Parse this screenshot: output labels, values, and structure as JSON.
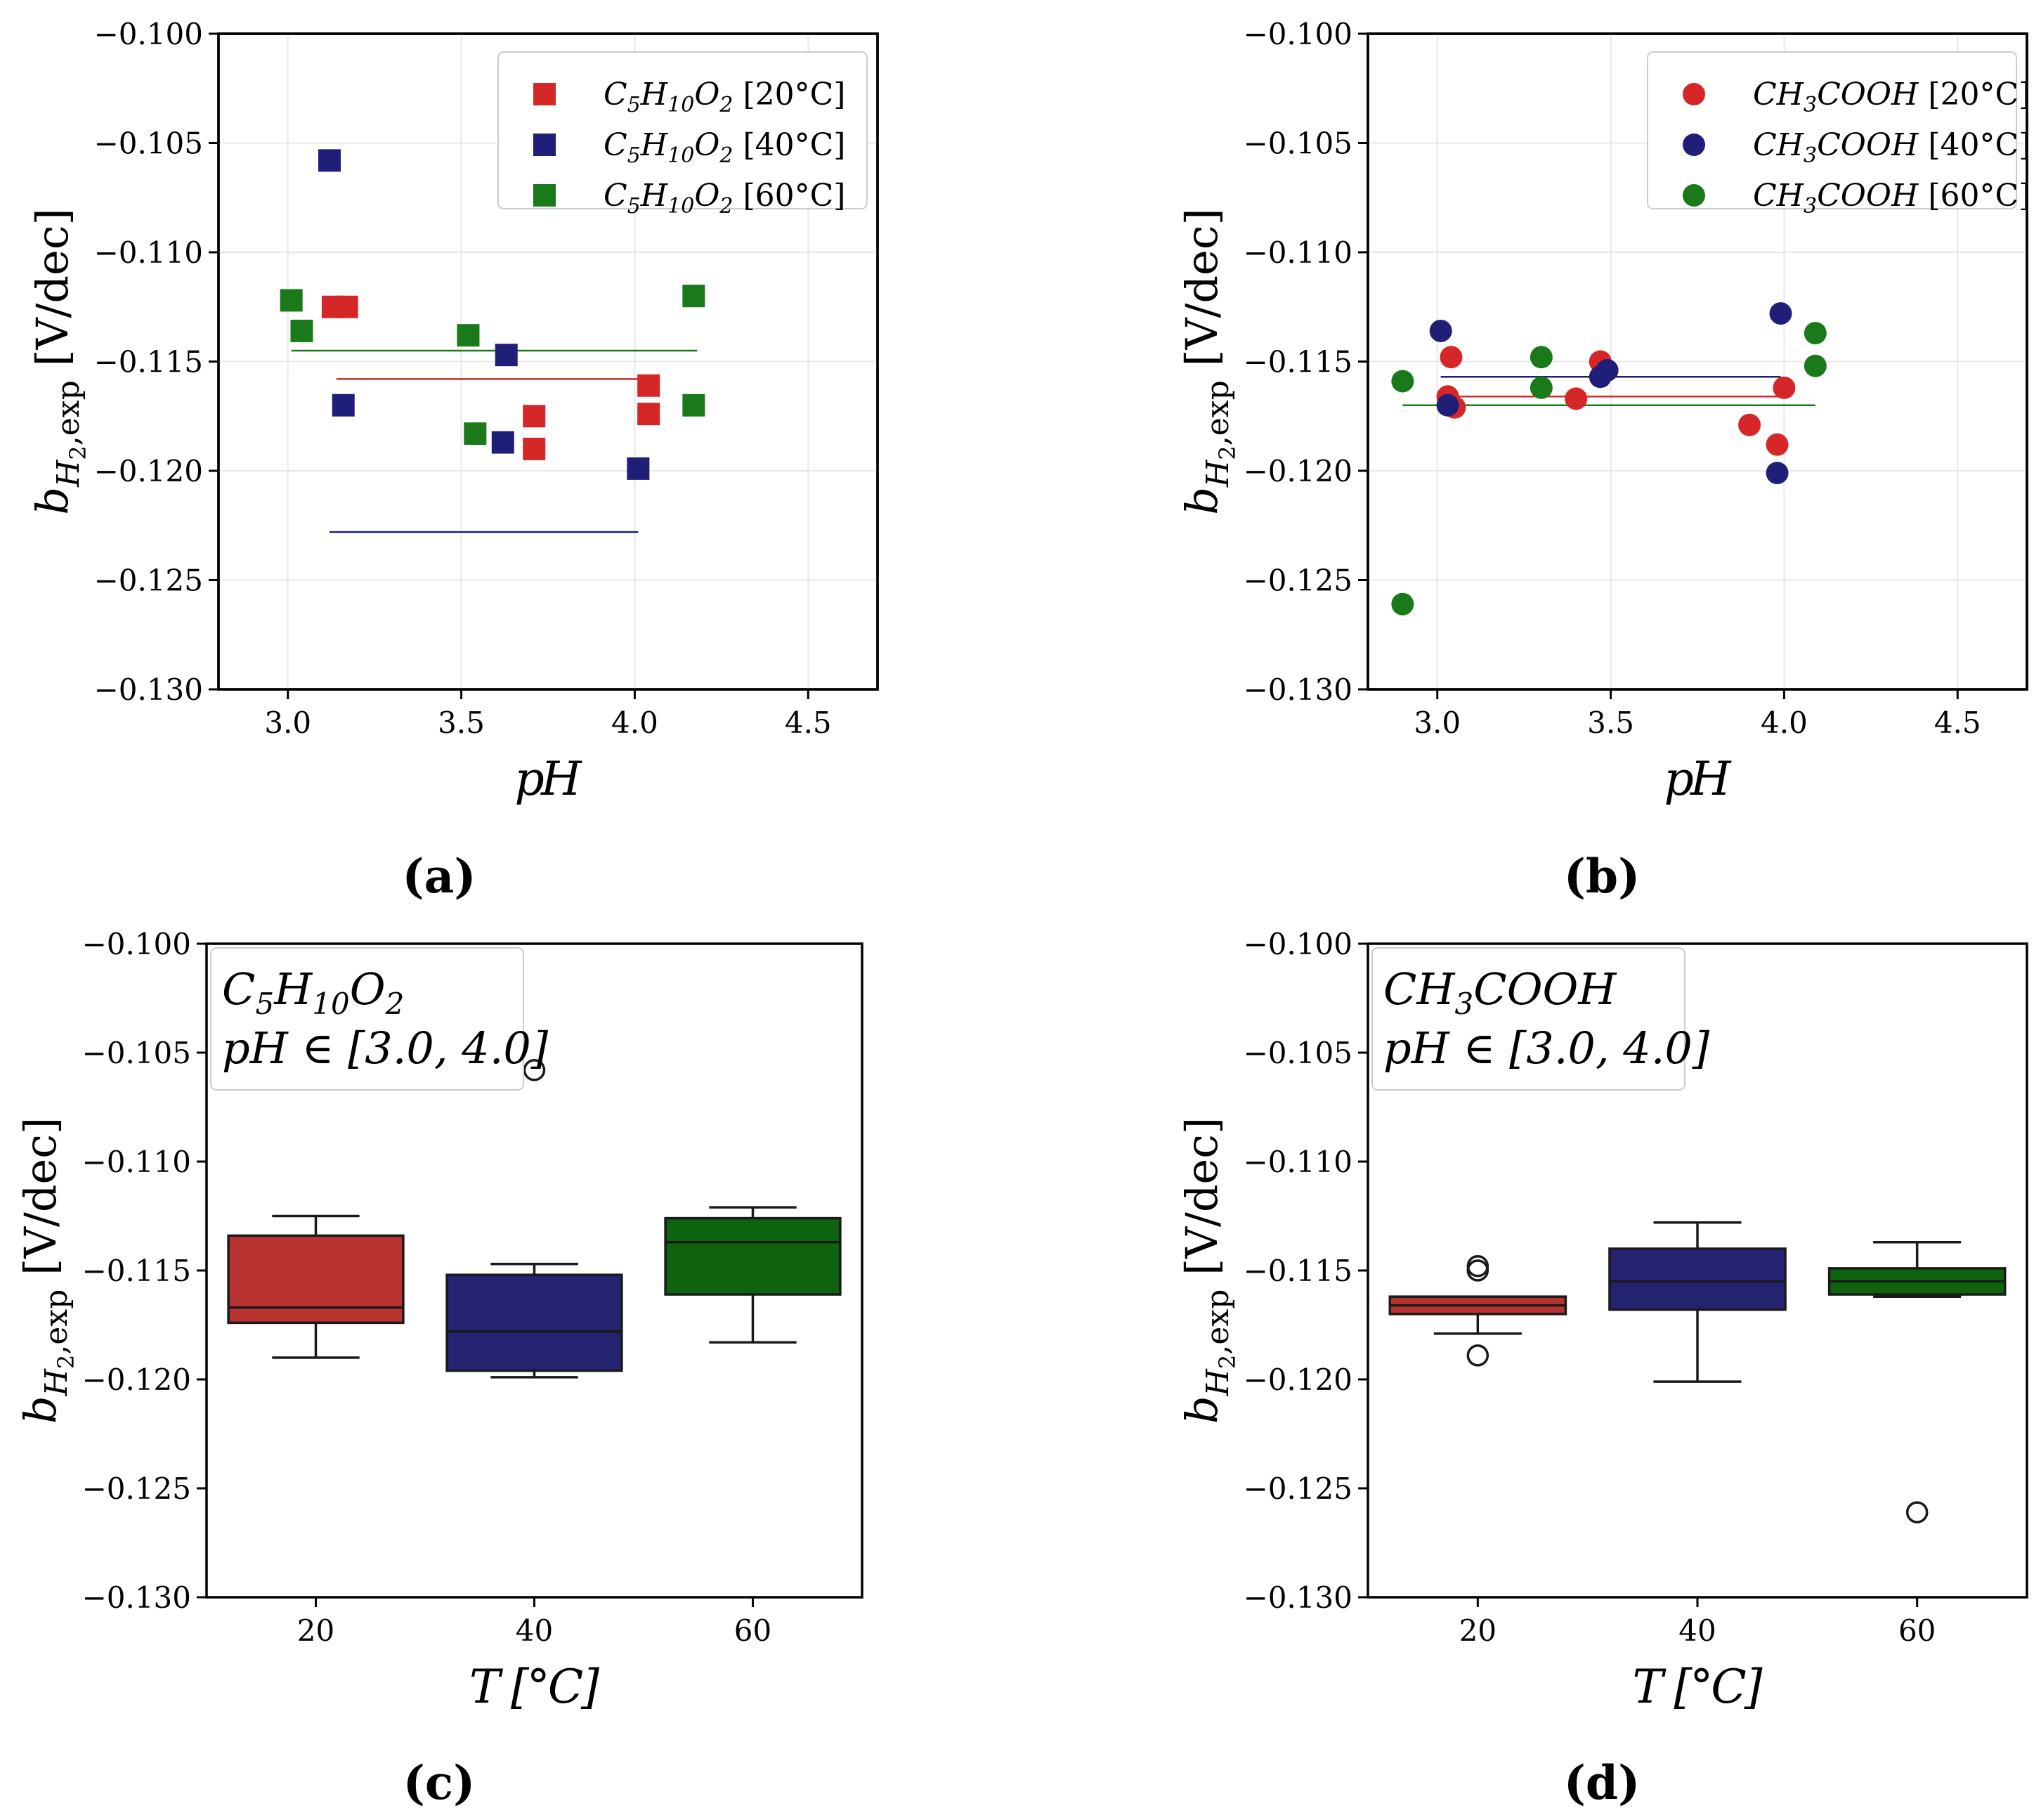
{
  "colors": {
    "red": "#d62728",
    "blue": "#1f1f7a",
    "green": "#1a7a1a",
    "box_red": "#b83232",
    "box_blue": "#232372",
    "box_green": "#0f630f"
  },
  "chart_data": [
    {
      "id": "a",
      "type": "scatter",
      "subtitle": "(a)",
      "xlabel": "pH",
      "ylabel": "b_{H_2,exp} [V/dec]",
      "ylabel_main": "b",
      "ylabel_sub": "H",
      "ylabel_subsub": "2",
      "ylabel_sub2": ",exp",
      "ylabel_unit": " [V/dec]",
      "xlim": [
        2.8,
        4.7
      ],
      "ylim": [
        -0.13,
        -0.1
      ],
      "xticks": [
        3.0,
        3.5,
        4.0,
        4.5
      ],
      "xtick_labels": [
        "3.0",
        "3.5",
        "4.0",
        "4.5"
      ],
      "yticks": [
        -0.1,
        -0.105,
        -0.11,
        -0.115,
        -0.12,
        -0.125,
        -0.13
      ],
      "ytick_labels": [
        "−0.100",
        "−0.105",
        "−0.110",
        "−0.115",
        "−0.120",
        "−0.125",
        "−0.130"
      ],
      "marker": "square",
      "legend_position": "top-right",
      "series": [
        {
          "name": "C5H10O2 [20°C]",
          "name_parts": [
            "C",
            "5",
            "H",
            "10",
            "O",
            "2",
            " [20°C]"
          ],
          "color": "#d62728",
          "x": [
            3.13,
            3.17,
            3.71,
            3.71,
            4.04,
            4.04
          ],
          "y": [
            -0.1125,
            -0.1125,
            -0.1175,
            -0.119,
            -0.1161,
            -0.1174
          ],
          "fit": {
            "x": [
              3.14,
              4.04
            ],
            "y": -0.1158
          }
        },
        {
          "name": "C5H10O2 [40°C]",
          "name_parts": [
            "C",
            "5",
            "H",
            "10",
            "O",
            "2",
            " [40°C]"
          ],
          "color": "#1f1f7a",
          "x": [
            3.12,
            3.16,
            3.63,
            3.62,
            4.01
          ],
          "y": [
            -0.1058,
            -0.117,
            -0.1147,
            -0.1187,
            -0.1199
          ],
          "fit": {
            "x": [
              3.12,
              4.01
            ],
            "y": -0.1228
          }
        },
        {
          "name": "C5H10O2 [60°C]",
          "name_parts": [
            "C",
            "5",
            "H",
            "10",
            "O",
            "2",
            " [60°C]"
          ],
          "color": "#1a7a1a",
          "x": [
            3.01,
            3.04,
            3.52,
            3.54,
            4.17,
            4.17
          ],
          "y": [
            -0.1122,
            -0.1136,
            -0.1138,
            -0.1183,
            -0.112,
            -0.117
          ],
          "fit": {
            "x": [
              3.01,
              4.18
            ],
            "y": -0.1145
          }
        }
      ]
    },
    {
      "id": "b",
      "type": "scatter",
      "subtitle": "(b)",
      "xlabel": "pH",
      "ylabel": "b_{H_2,exp} [V/dec]",
      "ylabel_main": "b",
      "ylabel_sub": "H",
      "ylabel_subsub": "2",
      "ylabel_sub2": ",exp",
      "ylabel_unit": " [V/dec]",
      "xlim": [
        2.8,
        4.7
      ],
      "ylim": [
        -0.13,
        -0.1
      ],
      "xticks": [
        3.0,
        3.5,
        4.0,
        4.5
      ],
      "xtick_labels": [
        "3.0",
        "3.5",
        "4.0",
        "4.5"
      ],
      "yticks": [
        -0.1,
        -0.105,
        -0.11,
        -0.115,
        -0.12,
        -0.125,
        -0.13
      ],
      "ytick_labels": [
        "−0.100",
        "−0.105",
        "−0.110",
        "−0.115",
        "−0.120",
        "−0.125",
        "−0.130"
      ],
      "marker": "circle",
      "legend_position": "top-right",
      "series": [
        {
          "name": "CH3COOH [20°C]",
          "name_parts": [
            "CH",
            "3",
            "COOH",
            "",
            "",
            "",
            " [20°C]"
          ],
          "color": "#d62728",
          "x": [
            3.03,
            3.04,
            3.05,
            3.4,
            3.47,
            3.9,
            3.98,
            4.0
          ],
          "y": [
            -0.1166,
            -0.1148,
            -0.1171,
            -0.1167,
            -0.115,
            -0.1179,
            -0.1188,
            -0.1162
          ],
          "fit": {
            "x": [
              3.03,
              4.0
            ],
            "y": -0.1166
          }
        },
        {
          "name": "CH3COOH [40°C]",
          "name_parts": [
            "CH",
            "3",
            "COOH",
            "",
            "",
            "",
            " [40°C]"
          ],
          "color": "#1f1f7a",
          "x": [
            3.01,
            3.03,
            3.47,
            3.49,
            3.98,
            3.99
          ],
          "y": [
            -0.1136,
            -0.117,
            -0.1157,
            -0.1154,
            -0.1201,
            -0.1128
          ],
          "fit": {
            "x": [
              3.01,
              3.99
            ],
            "y": -0.1157
          }
        },
        {
          "name": "CH3COOH [60°C]",
          "name_parts": [
            "CH",
            "3",
            "COOH",
            "",
            "",
            "",
            " [60°C]"
          ],
          "color": "#1a7a1a",
          "x": [
            2.9,
            2.9,
            3.3,
            3.3,
            4.09,
            4.09
          ],
          "y": [
            -0.1159,
            -0.1261,
            -0.1148,
            -0.1162,
            -0.1137,
            -0.1152
          ],
          "fit": {
            "x": [
              2.9,
              4.09
            ],
            "y": -0.117
          }
        }
      ]
    },
    {
      "id": "c",
      "type": "box",
      "subtitle": "(c)",
      "xlabel": "T [°C]",
      "ylabel": "b_{H_2,exp} [V/dec]",
      "ylabel_main": "b",
      "ylabel_sub": "H",
      "ylabel_subsub": "2",
      "ylabel_sub2": ",exp",
      "ylabel_unit": " [V/dec]",
      "ylim": [
        -0.13,
        -0.1
      ],
      "yticks": [
        -0.1,
        -0.105,
        -0.11,
        -0.115,
        -0.12,
        -0.125,
        -0.13
      ],
      "ytick_labels": [
        "−0.100",
        "−0.105",
        "−0.110",
        "−0.115",
        "−0.120",
        "−0.125",
        "−0.130"
      ],
      "categories": [
        "20",
        "40",
        "60"
      ],
      "info_line1_parts": [
        "C",
        "5",
        "H",
        "10",
        "O",
        "2"
      ],
      "info_line2": "pH ∈ [3.0, 4.0]",
      "boxes": [
        {
          "category": "20",
          "color": "#b83232",
          "whisker_low": -0.119,
          "q1": -0.1174,
          "median": -0.1167,
          "q3": -0.1134,
          "whisker_high": -0.1125,
          "outliers": []
        },
        {
          "category": "40",
          "color": "#232372",
          "whisker_low": -0.1199,
          "q1": -0.1196,
          "median": -0.1178,
          "q3": -0.1152,
          "whisker_high": -0.1147,
          "outliers": [
            -0.1058
          ]
        },
        {
          "category": "60",
          "color": "#0f630f",
          "whisker_low": -0.1183,
          "q1": -0.1161,
          "median": -0.1137,
          "q3": -0.1126,
          "whisker_high": -0.1121,
          "outliers": []
        }
      ]
    },
    {
      "id": "d",
      "type": "box",
      "subtitle": "(d)",
      "xlabel": "T [°C]",
      "ylabel": "b_{H_2,exp} [V/dec]",
      "ylabel_main": "b",
      "ylabel_sub": "H",
      "ylabel_subsub": "2",
      "ylabel_sub2": ",exp",
      "ylabel_unit": " [V/dec]",
      "ylim": [
        -0.13,
        -0.1
      ],
      "yticks": [
        -0.1,
        -0.105,
        -0.11,
        -0.115,
        -0.12,
        -0.125,
        -0.13
      ],
      "ytick_labels": [
        "−0.100",
        "−0.105",
        "−0.110",
        "−0.115",
        "−0.120",
        "−0.125",
        "−0.130"
      ],
      "categories": [
        "20",
        "40",
        "60"
      ],
      "info_line1_parts": [
        "CH",
        "3",
        "COOH",
        "",
        "",
        ""
      ],
      "info_line2": "pH ∈ [3.0, 4.0]",
      "boxes": [
        {
          "category": "20",
          "color": "#b83232",
          "whisker_low": -0.1179,
          "q1": -0.117,
          "median": -0.1166,
          "q3": -0.1162,
          "whisker_high": -0.1162,
          "outliers": [
            -0.1148,
            -0.115,
            -0.1189
          ]
        },
        {
          "category": "40",
          "color": "#232372",
          "whisker_low": -0.1201,
          "q1": -0.1168,
          "median": -0.1155,
          "q3": -0.114,
          "whisker_high": -0.1128,
          "outliers": []
        },
        {
          "category": "60",
          "color": "#0f630f",
          "whisker_low": -0.1162,
          "q1": -0.1161,
          "median": -0.1155,
          "q3": -0.1149,
          "whisker_high": -0.1137,
          "outliers": [
            -0.1261
          ]
        }
      ]
    }
  ]
}
